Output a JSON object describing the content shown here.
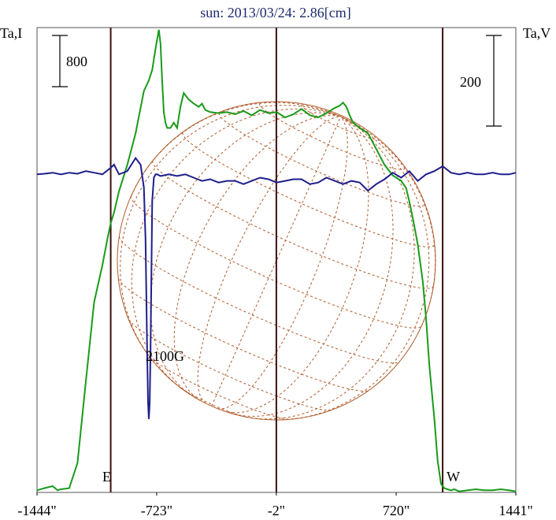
{
  "chart_data": {
    "type": "line",
    "title": "sun: 2013/03/24: 2.86[cm]",
    "left_axis_label": "Ta,I",
    "right_axis_label": "Ta,V",
    "xlim": [
      -1444,
      1441
    ],
    "x_ticks": [
      {
        "value": -1444,
        "label": "-1444\""
      },
      {
        "value": -723,
        "label": "-723\""
      },
      {
        "value": -2,
        "label": "-2\""
      },
      {
        "value": 720,
        "label": "720\""
      },
      {
        "value": 1441,
        "label": "1441\""
      }
    ],
    "vertical_lines_x": [
      -1000,
      -2,
      1000
    ],
    "limb_labels": {
      "east": "E",
      "west": "W"
    },
    "scale_bar_left": {
      "label": "800"
    },
    "scale_bar_right": {
      "label": "200"
    },
    "annotation": {
      "text": "2100G",
      "x": -770
    },
    "intensity_ylim": [
      0,
      4400
    ],
    "polarization_ylim": [
      -975,
      450
    ],
    "series": [
      {
        "name": "Ta,I",
        "color": "#1a9a1a",
        "x": [
          -1444,
          -1400,
          -1350,
          -1320,
          -1300,
          -1250,
          -1200,
          -1150,
          -1100,
          -1050,
          -1020,
          -1000,
          -980,
          -950,
          -900,
          -850,
          -800,
          -770,
          -750,
          -730,
          -710,
          -700,
          -690,
          -680,
          -670,
          -660,
          -650,
          -640,
          -620,
          -600,
          -580,
          -560,
          -530,
          -500,
          -470,
          -450,
          -430,
          -400,
          -350,
          -300,
          -250,
          -200,
          -150,
          -100,
          -50,
          0,
          50,
          100,
          150,
          200,
          250,
          300,
          350,
          380,
          400,
          420,
          440,
          460,
          500,
          550,
          600,
          650,
          700,
          750,
          780,
          800,
          820,
          850,
          880,
          900,
          920,
          950,
          970,
          990,
          1010,
          1030,
          1050,
          1070,
          1100,
          1150,
          1200,
          1250,
          1300,
          1350,
          1400,
          1441
        ],
        "y": [
          20,
          40,
          60,
          20,
          30,
          40,
          280,
          1050,
          1800,
          2150,
          2400,
          2550,
          2650,
          2850,
          3100,
          3400,
          3800,
          3900,
          4000,
          4200,
          4380,
          4250,
          3900,
          3600,
          3500,
          3450,
          3450,
          3450,
          3500,
          3450,
          3650,
          3780,
          3720,
          3680,
          3650,
          3680,
          3620,
          3600,
          3590,
          3600,
          3580,
          3610,
          3570,
          3620,
          3590,
          3600,
          3550,
          3580,
          3630,
          3570,
          3550,
          3590,
          3640,
          3660,
          3690,
          3650,
          3570,
          3500,
          3450,
          3400,
          3250,
          3100,
          3000,
          2950,
          2880,
          2750,
          2600,
          2350,
          2000,
          1650,
          1200,
          700,
          300,
          80,
          40,
          30,
          20,
          30,
          10,
          20,
          30,
          20,
          20,
          30,
          20,
          10
        ]
      },
      {
        "name": "Ta,V",
        "color": "#1e1e8c",
        "x": [
          -1444,
          -1400,
          -1350,
          -1300,
          -1250,
          -1200,
          -1150,
          -1100,
          -1050,
          -1000,
          -980,
          -950,
          -900,
          -850,
          -820,
          -800,
          -790,
          -780,
          -775,
          -770,
          -765,
          -760,
          -750,
          -740,
          -730,
          -720,
          -700,
          -650,
          -600,
          -550,
          -500,
          -450,
          -400,
          -350,
          -300,
          -250,
          -200,
          -150,
          -100,
          -50,
          0,
          50,
          100,
          150,
          200,
          250,
          300,
          350,
          400,
          450,
          500,
          550,
          600,
          650,
          700,
          750,
          800,
          850,
          900,
          950,
          1000,
          1050,
          1100,
          1150,
          1200,
          1250,
          1300,
          1350,
          1400,
          1441
        ],
        "y": [
          0,
          2,
          5,
          0,
          5,
          2,
          10,
          5,
          0,
          20,
          30,
          0,
          10,
          50,
          30,
          -40,
          -200,
          -550,
          -700,
          -750,
          -700,
          -550,
          -80,
          -10,
          0,
          0,
          -5,
          0,
          -5,
          0,
          -10,
          -20,
          -15,
          -25,
          -20,
          -20,
          -30,
          -20,
          -10,
          -15,
          -25,
          -20,
          -15,
          -15,
          -30,
          -25,
          -10,
          -20,
          -30,
          -20,
          -25,
          -50,
          -30,
          -15,
          5,
          -10,
          10,
          -20,
          0,
          10,
          25,
          5,
          0,
          5,
          0,
          0,
          5,
          0,
          0,
          5
        ]
      }
    ]
  }
}
